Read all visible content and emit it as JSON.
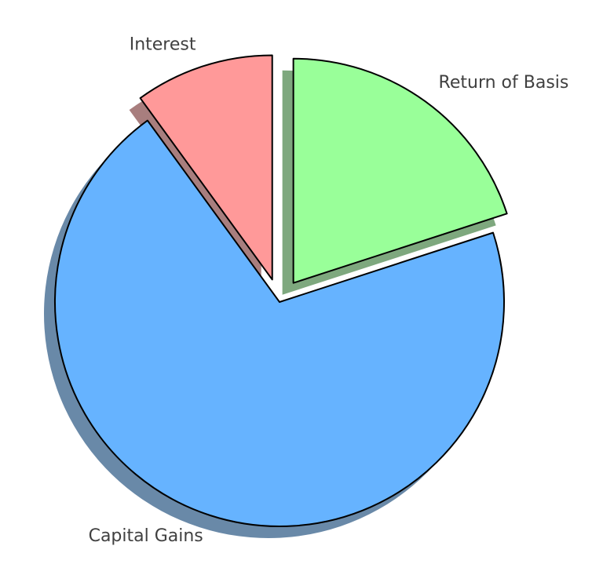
{
  "chart_data": {
    "type": "pie",
    "title": "",
    "slices": [
      {
        "label": "Return of Basis",
        "value": 20,
        "color": "#99ff99",
        "explode": true
      },
      {
        "label": "Capital Gains",
        "value": 70,
        "color": "#66b3ff",
        "explode": false
      },
      {
        "label": "Interest",
        "value": 10,
        "color": "#ff9999",
        "explode": true
      }
    ],
    "start_angle_deg": 90,
    "direction": "clockwise",
    "shadow": true,
    "legend": "none"
  }
}
